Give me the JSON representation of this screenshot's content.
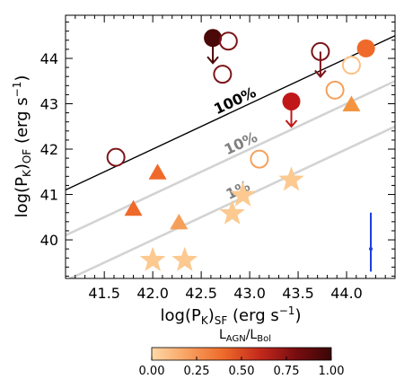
{
  "chart_data": {
    "type": "scatter",
    "x_axis": {
      "range": [
        41.1,
        44.5
      ],
      "ticks": [
        41.5,
        42.0,
        42.5,
        43.0,
        43.5,
        44.0
      ],
      "tick_labels": [
        "41.5",
        "42.0",
        "42.5",
        "43.0",
        "43.5",
        "44.0"
      ]
    },
    "y_axis": {
      "range": [
        39.15,
        44.95
      ],
      "ticks": [
        40,
        41,
        42,
        43,
        44
      ],
      "tick_labels": [
        "40",
        "41",
        "42",
        "43",
        "44"
      ]
    },
    "reference_lines": [
      {
        "label": "100%",
        "offset": 0,
        "color": "#000000",
        "label_color": "#000000"
      },
      {
        "label": "10%",
        "offset": -1,
        "color": "#d3d3d3",
        "label_color": "#808080"
      },
      {
        "label": "1%",
        "offset": -2,
        "color": "#d3d3d3",
        "label_color": "#808080"
      }
    ],
    "points": [
      {
        "x": 41.62,
        "y": 41.82,
        "marker": "circle",
        "filled": false,
        "color": "#7b1418"
      },
      {
        "x": 42.62,
        "y": 44.45,
        "marker": "circle",
        "filled": true,
        "color": "#4a0808",
        "upper_limit": true
      },
      {
        "x": 42.72,
        "y": 43.65,
        "marker": "circle",
        "filled": false,
        "color": "#7b1418"
      },
      {
        "x": 42.78,
        "y": 44.38,
        "marker": "circle",
        "filled": false,
        "color": "#7b1418"
      },
      {
        "x": 43.43,
        "y": 43.05,
        "marker": "circle",
        "filled": true,
        "color": "#c01818",
        "upper_limit": true
      },
      {
        "x": 43.73,
        "y": 44.15,
        "marker": "circle",
        "filled": false,
        "color": "#7b1418",
        "upper_limit": true
      },
      {
        "x": 43.88,
        "y": 43.3,
        "marker": "circle",
        "filled": false,
        "color": "#f5a05a"
      },
      {
        "x": 44.05,
        "y": 43.85,
        "marker": "circle",
        "filled": false,
        "color": "#ffc080"
      },
      {
        "x": 44.2,
        "y": 44.22,
        "marker": "circle",
        "filled": true,
        "color": "#ef6a2a"
      },
      {
        "x": 43.1,
        "y": 41.78,
        "marker": "circle",
        "filled": false,
        "color": "#f5a05a"
      },
      {
        "x": 42.05,
        "y": 41.48,
        "marker": "triangle",
        "filled": true,
        "color": "#ef6a2a"
      },
      {
        "x": 41.8,
        "y": 40.68,
        "marker": "triangle",
        "filled": true,
        "color": "#ef6a2a"
      },
      {
        "x": 42.27,
        "y": 40.38,
        "marker": "triangle",
        "filled": true,
        "color": "#f5a05a"
      },
      {
        "x": 44.05,
        "y": 42.98,
        "marker": "triangle",
        "filled": true,
        "color": "#f59440"
      },
      {
        "x": 42.0,
        "y": 39.55,
        "marker": "star",
        "filled": true,
        "color": "#fcc990"
      },
      {
        "x": 42.33,
        "y": 39.55,
        "marker": "star",
        "filled": true,
        "color": "#fcc990"
      },
      {
        "x": 42.82,
        "y": 40.58,
        "marker": "star",
        "filled": true,
        "color": "#fcc990"
      },
      {
        "x": 42.93,
        "y": 40.98,
        "marker": "star",
        "filled": true,
        "color": "#fcc990"
      },
      {
        "x": 43.43,
        "y": 41.32,
        "marker": "star",
        "filled": true,
        "color": "#fcc990"
      }
    ],
    "error_bar": {
      "x": 44.25,
      "y_center": 39.8,
      "y_low": 39.3,
      "y_high": 40.6,
      "color": "#1a3de0"
    },
    "colorbar": {
      "range": [
        0.0,
        1.0
      ],
      "ticks": [
        0.0,
        0.25,
        0.5,
        0.75,
        1.0
      ],
      "tick_labels": [
        "0.00",
        "0.25",
        "0.50",
        "0.75",
        "1.00"
      ],
      "colors": [
        "#ffd9a8",
        "#f8a060",
        "#ee6a2a",
        "#c42a1c",
        "#7a0d10",
        "#3a0606"
      ]
    }
  }
}
